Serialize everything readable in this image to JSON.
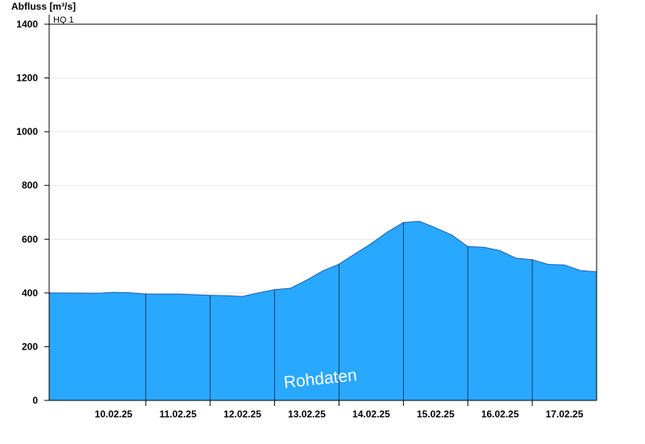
{
  "chart_data": {
    "type": "area",
    "ylabel": "Abfluss [m³/s]",
    "threshold_label": "HQ 1",
    "threshold_value": 1400,
    "ylim": [
      0,
      1400
    ],
    "yticks": [
      0,
      200,
      400,
      600,
      800,
      1000,
      1200,
      1400
    ],
    "xlim": [
      "2025-02-09 12:00",
      "2025-02-18 00:00"
    ],
    "xtick_labels": [
      "10.02.25",
      "11.02.25",
      "12.02.25",
      "13.02.25",
      "14.02.25",
      "15.02.25",
      "16.02.25",
      "17.02.25"
    ],
    "xtick_label_times": [
      "2025-02-10 12:00",
      "2025-02-11 12:00",
      "2025-02-12 12:00",
      "2025-02-13 12:00",
      "2025-02-14 12:00",
      "2025-02-15 12:00",
      "2025-02-16 12:00",
      "2025-02-17 12:00"
    ],
    "day_boundaries": [
      "2025-02-11 00:00",
      "2025-02-12 00:00",
      "2025-02-13 00:00",
      "2025-02-14 00:00",
      "2025-02-15 00:00",
      "2025-02-16 00:00",
      "2025-02-17 00:00"
    ],
    "grid": true,
    "fill_color": "#29a8ff",
    "watermark": "Rohdaten",
    "series": [
      {
        "x": [
          "2025-02-09 12:00",
          "2025-02-10 00:00",
          "2025-02-10 06:00",
          "2025-02-10 12:00",
          "2025-02-10 18:00",
          "2025-02-11 00:00",
          "2025-02-11 12:00",
          "2025-02-12 00:00",
          "2025-02-12 06:00",
          "2025-02-12 12:00",
          "2025-02-12 18:00",
          "2025-02-13 00:00",
          "2025-02-13 06:00",
          "2025-02-13 12:00",
          "2025-02-13 18:00",
          "2025-02-14 00:00",
          "2025-02-14 06:00",
          "2025-02-14 12:00",
          "2025-02-14 18:00",
          "2025-02-15 00:00",
          "2025-02-15 06:00",
          "2025-02-15 12:00",
          "2025-02-15 18:00",
          "2025-02-16 00:00",
          "2025-02-16 06:00",
          "2025-02-16 12:00",
          "2025-02-16 18:00",
          "2025-02-17 00:00",
          "2025-02-17 06:00",
          "2025-02-17 12:00",
          "2025-02-17 18:00",
          "2025-02-18 00:00"
        ],
        "y": [
          400,
          402,
          398,
          400,
          402,
          398,
          394,
          390,
          392,
          388,
          398,
          412,
          420,
          448,
          480,
          508,
          548,
          582,
          625,
          664,
          668,
          640,
          615,
          575,
          570,
          555,
          530,
          526,
          505,
          502,
          485,
          480
        ]
      }
    ]
  }
}
